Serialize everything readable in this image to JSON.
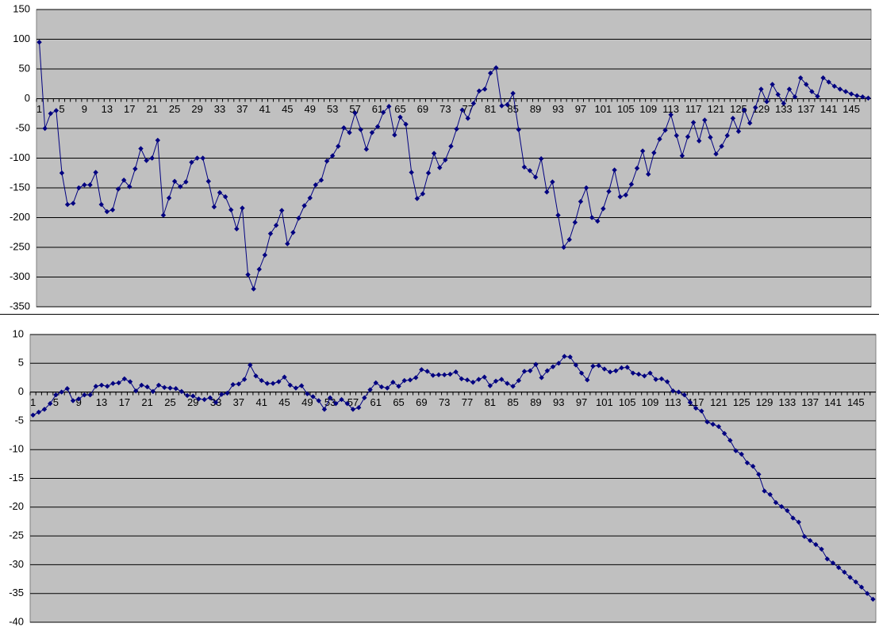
{
  "chart_data": [
    {
      "type": "line",
      "color": "#000080",
      "grid": true,
      "ylim": [
        -350,
        150
      ],
      "yticks": [
        -350,
        -300,
        -250,
        -200,
        -150,
        -100,
        -50,
        0,
        50,
        100,
        150
      ],
      "categories": [
        1,
        null,
        null,
        null,
        5,
        null,
        null,
        null,
        9,
        null,
        null,
        null,
        13,
        null,
        null,
        null,
        17,
        null,
        null,
        null,
        21,
        null,
        null,
        null,
        25,
        null,
        null,
        null,
        29,
        null,
        null,
        null,
        33,
        null,
        null,
        null,
        37,
        null,
        null,
        null,
        41,
        null,
        null,
        null,
        45,
        null,
        null,
        null,
        49,
        null,
        null,
        null,
        53,
        null,
        null,
        null,
        57,
        null,
        null,
        null,
        61,
        null,
        null,
        null,
        65,
        null,
        null,
        null,
        69,
        null,
        null,
        null,
        73,
        null,
        null,
        null,
        77,
        null,
        null,
        null,
        81,
        null,
        null,
        null,
        85,
        null,
        null,
        null,
        89,
        null,
        null,
        null,
        93,
        null,
        null,
        null,
        97,
        null,
        null,
        null,
        101,
        null,
        null,
        null,
        105,
        null,
        null,
        null,
        109,
        null,
        null,
        null,
        113,
        null,
        null,
        null,
        117,
        null,
        null,
        null,
        121,
        null,
        null,
        null,
        125,
        null,
        null,
        null,
        129,
        null,
        null,
        null,
        133,
        null,
        null,
        null,
        137,
        null,
        null,
        null,
        141,
        null,
        null,
        null,
        145,
        null,
        null,
        null
      ],
      "values": [
        95,
        -50,
        -25,
        -20,
        -125,
        -178,
        -176,
        -150,
        -145,
        -145,
        -124,
        -178,
        -190,
        -187,
        -152,
        -137,
        -148,
        -118,
        -84,
        -104,
        -100,
        -70,
        -196,
        -167,
        -139,
        -148,
        -140,
        -107,
        -100,
        -100,
        -139,
        -182,
        -158,
        -165,
        -187,
        -219,
        -184,
        -296,
        -320,
        -287,
        -263,
        -227,
        -213,
        -188,
        -244,
        -225,
        -201,
        -180,
        -167,
        -145,
        -137,
        -105,
        -96,
        -80,
        -49,
        -57,
        -24,
        -52,
        -85,
        -57,
        -47,
        -23,
        -13,
        -61,
        -31,
        -43,
        -124,
        -168,
        -160,
        -125,
        -92,
        -116,
        -103,
        -80,
        -51,
        -19,
        -33,
        -8,
        13,
        16,
        43,
        52,
        -12,
        -10,
        9,
        -52,
        -115,
        -121,
        -132,
        -101,
        -157,
        -140,
        -196,
        -250,
        -237,
        -208,
        -173,
        -150,
        -200,
        -206,
        -185,
        -156,
        -120,
        -165,
        -162,
        -144,
        -117,
        -88,
        -127,
        -91,
        -68,
        -53,
        -27,
        -62,
        -96,
        -64,
        -40,
        -71,
        -36,
        -65,
        -93,
        -80,
        -62,
        -33,
        -55,
        -19,
        -41,
        -15,
        16,
        -5,
        24,
        7,
        -8,
        16,
        3,
        35,
        24,
        12,
        4,
        35,
        28,
        21,
        16,
        12,
        8,
        5,
        3,
        1
      ]
    },
    {
      "type": "line",
      "color": "#000080",
      "grid": true,
      "ylim": [
        -40,
        10
      ],
      "yticks": [
        -40,
        -35,
        -30,
        -25,
        -20,
        -15,
        -10,
        -5,
        0,
        5,
        10
      ],
      "categories": [
        1,
        null,
        null,
        null,
        5,
        null,
        null,
        null,
        9,
        null,
        null,
        null,
        13,
        null,
        null,
        null,
        17,
        null,
        null,
        null,
        21,
        null,
        null,
        null,
        25,
        null,
        null,
        null,
        29,
        null,
        null,
        null,
        33,
        null,
        null,
        null,
        37,
        null,
        null,
        null,
        41,
        null,
        null,
        null,
        45,
        null,
        null,
        null,
        49,
        null,
        null,
        null,
        53,
        null,
        null,
        null,
        57,
        null,
        null,
        null,
        61,
        null,
        null,
        null,
        65,
        null,
        null,
        null,
        69,
        null,
        null,
        null,
        73,
        null,
        null,
        null,
        77,
        null,
        null,
        null,
        81,
        null,
        null,
        null,
        85,
        null,
        null,
        null,
        89,
        null,
        null,
        null,
        93,
        null,
        null,
        null,
        97,
        null,
        null,
        null,
        101,
        null,
        null,
        null,
        105,
        null,
        null,
        null,
        109,
        null,
        null,
        null,
        113,
        null,
        null,
        null,
        117,
        null,
        null,
        null,
        121,
        null,
        null,
        null,
        125,
        null,
        null,
        null,
        129,
        null,
        null,
        null,
        133,
        null,
        null,
        null,
        137,
        null,
        null,
        null,
        141,
        null,
        null,
        null,
        145,
        null,
        null,
        null
      ],
      "values": [
        -4,
        -3.5,
        -3,
        -2,
        -0.5,
        0,
        0.6,
        -1.5,
        -1.2,
        -0.5,
        -0.5,
        1,
        1.2,
        1,
        1.5,
        1.6,
        2.3,
        1.8,
        0.2,
        1.2,
        0.9,
        0.1,
        1.2,
        0.8,
        0.7,
        0.6,
        0.1,
        -0.6,
        -0.7,
        -1.2,
        -1.3,
        -1,
        -1.8,
        -0.4,
        -0.2,
        1.3,
        1.4,
        2.2,
        4.7,
        2.8,
        2,
        1.5,
        1.5,
        1.8,
        2.6,
        1.2,
        0.7,
        1.1,
        -0.3,
        -0.8,
        -1.5,
        -3,
        -1,
        -2,
        -1.3,
        -2,
        -3,
        -2.7,
        -1,
        0.4,
        1.6,
        0.9,
        0.7,
        1.7,
        1,
        2,
        2.1,
        2.5,
        3.9,
        3.6,
        2.9,
        3,
        3,
        3.1,
        3.5,
        2.3,
        2.1,
        1.7,
        2.2,
        2.6,
        1.1,
        1.9,
        2.2,
        1.5,
        1,
        2,
        3.6,
        3.7,
        4.8,
        2.5,
        3.7,
        4.4,
        5,
        6.2,
        6.1,
        4.7,
        3.3,
        2.1,
        4.5,
        4.6,
        4,
        3.5,
        3.7,
        4.2,
        4.3,
        3.3,
        3.1,
        2.8,
        3.3,
        2.2,
        2.3,
        1.8,
        0.2,
        0,
        -0.5,
        -1.8,
        -2.8,
        -3.3,
        -5.2,
        -5.6,
        -6,
        -7.2,
        -8.4,
        -10.2,
        -10.8,
        -12.3,
        -12.9,
        -14.3,
        -17.2,
        -17.8,
        -19.2,
        -19.9,
        -20.6,
        -21.9,
        -22.6,
        -25.1,
        -25.8,
        -26.5,
        -27.3,
        -29,
        -29.7,
        -30.5,
        -31.3,
        -32.2,
        -33,
        -33.9,
        -35,
        -36
      ]
    }
  ]
}
